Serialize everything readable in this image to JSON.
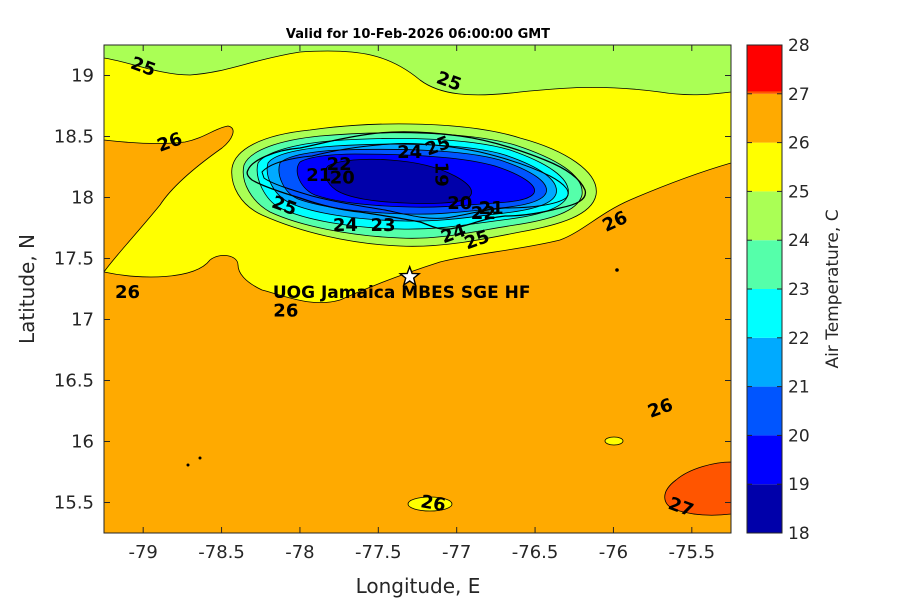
{
  "chart_data": {
    "type": "heatmap",
    "title": "Valid for 10-Feb-2026 06:00:00 GMT",
    "xlabel": "Longitude, E",
    "ylabel": "Latitude, N",
    "xlim": [
      -79.25,
      -75.25
    ],
    "ylim": [
      15.25,
      19.25
    ],
    "xticks": [
      -79,
      -78.5,
      -78,
      -77.5,
      -77,
      -76.5,
      -76,
      -75.5
    ],
    "xtick_labels": [
      "-79",
      "-78.5",
      "-78",
      "-77.5",
      "-77",
      "-76.5",
      "-76",
      "-75.5"
    ],
    "yticks": [
      15.5,
      16,
      16.5,
      17,
      17.5,
      18,
      18.5,
      19
    ],
    "ytick_labels": [
      "15.5",
      "16",
      "16.5",
      "17",
      "17.5",
      "18",
      "18.5",
      "19"
    ],
    "colorbar": {
      "label": "Air Temperature, C",
      "range": [
        18,
        28
      ],
      "ticks": [
        18,
        19,
        20,
        21,
        22,
        23,
        24,
        25,
        26,
        27,
        28
      ],
      "tick_labels": [
        "18",
        "19",
        "20",
        "21",
        "22",
        "23",
        "24",
        "25",
        "26",
        "27",
        "28"
      ],
      "colors": [
        "#0000aa",
        "#0000ff",
        "#0055ff",
        "#00aaff",
        "#00ffff",
        "#55ffaa",
        "#aaff55",
        "#ffff00",
        "#ffaa00",
        "#ff5500"
      ]
    },
    "contour_labels": [
      {
        "text": "25",
        "lon": -79.0,
        "lat": 19.07,
        "rot": 20
      },
      {
        "text": "25",
        "lon": -77.05,
        "lat": 18.95,
        "rot": 20
      },
      {
        "text": "26",
        "lon": -78.83,
        "lat": 18.45,
        "rot": -20
      },
      {
        "text": "24",
        "lon": -77.3,
        "lat": 18.37,
        "rot": 0
      },
      {
        "text": "25",
        "lon": -77.12,
        "lat": 18.42,
        "rot": -20
      },
      {
        "text": "22",
        "lon": -77.75,
        "lat": 18.27,
        "rot": 0
      },
      {
        "text": "21",
        "lon": -77.88,
        "lat": 18.18,
        "rot": 0
      },
      {
        "text": "20",
        "lon": -77.73,
        "lat": 18.16,
        "rot": 0
      },
      {
        "text": "19",
        "lon": -77.1,
        "lat": 18.19,
        "rot": 90
      },
      {
        "text": "25",
        "lon": -78.1,
        "lat": 17.93,
        "rot": 20
      },
      {
        "text": "24",
        "lon": -77.71,
        "lat": 17.77,
        "rot": 0
      },
      {
        "text": "23",
        "lon": -77.47,
        "lat": 17.77,
        "rot": 0
      },
      {
        "text": "20",
        "lon": -76.98,
        "lat": 17.95,
        "rot": 0
      },
      {
        "text": "21",
        "lon": -76.78,
        "lat": 17.91,
        "rot": 0
      },
      {
        "text": "22",
        "lon": -76.83,
        "lat": 17.87,
        "rot": 0
      },
      {
        "text": "24",
        "lon": -77.02,
        "lat": 17.7,
        "rot": -20
      },
      {
        "text": "25",
        "lon": -76.87,
        "lat": 17.65,
        "rot": -20
      },
      {
        "text": "26",
        "lon": -75.99,
        "lat": 17.8,
        "rot": -25
      },
      {
        "text": "26",
        "lon": -79.1,
        "lat": 17.22,
        "rot": 0
      },
      {
        "text": "26",
        "lon": -78.09,
        "lat": 17.07,
        "rot": 0
      },
      {
        "text": "26",
        "lon": -75.7,
        "lat": 16.27,
        "rot": -20
      },
      {
        "text": "26",
        "lon": -77.15,
        "lat": 15.49,
        "rot": 10
      },
      {
        "text": "27",
        "lon": -75.57,
        "lat": 15.46,
        "rot": 20
      }
    ],
    "site": {
      "name": "UOG Jamaica MBES SGE HF",
      "lon": -77.3,
      "lat": 17.35
    }
  }
}
